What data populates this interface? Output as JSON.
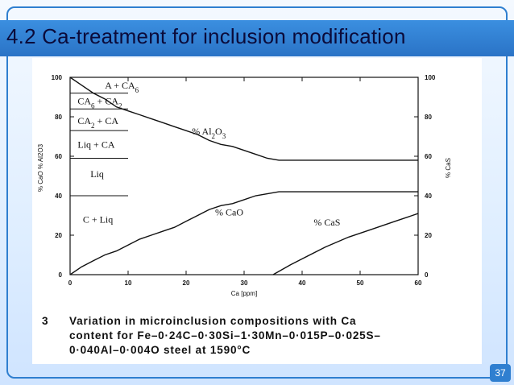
{
  "slide": {
    "title": "4.2  Ca-treatment for inclusion modification",
    "page_number": "37",
    "colors": {
      "title_bar": "#2a73c6",
      "frame": "#2f7fd0",
      "title_text": "#0b0b3a"
    }
  },
  "figure": {
    "caption_number": "3",
    "caption_lines": [
      "Variation  in  microinclusion  compositions  with  Ca",
      "content  for  Fe–0·24C–0·30Si–1·30Mn–0·015P–0·025S–",
      "0·040Al–0·004O steel at 1590°C"
    ]
  },
  "chart_data": {
    "type": "line",
    "xlabel": "Ca [ppm]",
    "ylabel_left": "% CaO     % Al2O3",
    "ylabel_right": "% CaS",
    "xlim": [
      0,
      60
    ],
    "ylim": [
      0,
      100
    ],
    "x_ticks": [
      0,
      10,
      20,
      30,
      40,
      50,
      60
    ],
    "y_ticks": [
      0,
      20,
      40,
      60,
      80,
      100
    ],
    "grid": false,
    "region_labels": [
      "A + CA6",
      "CA6 + CA2",
      "CA2 + CA",
      "Liq + CA",
      "Liq",
      "C + Liq"
    ],
    "phase_boundaries_percent": [
      92,
      84,
      73,
      59,
      40
    ],
    "series": [
      {
        "name": "% Al2O3",
        "x": [
          0,
          2,
          4,
          6,
          8,
          10,
          12,
          14,
          16,
          18,
          20,
          22,
          24,
          26,
          28,
          30,
          32,
          34,
          36,
          40,
          45,
          50,
          55,
          60
        ],
        "y": [
          100,
          96,
          92,
          89,
          85,
          83,
          81,
          79,
          77,
          75,
          73,
          71,
          68,
          66,
          65,
          63,
          61,
          59,
          58,
          58,
          58,
          58,
          58,
          58
        ]
      },
      {
        "name": "% CaO",
        "x": [
          0,
          2,
          4,
          6,
          8,
          10,
          12,
          14,
          16,
          18,
          20,
          22,
          24,
          26,
          28,
          30,
          32,
          34,
          36,
          40,
          45,
          50,
          55,
          60
        ],
        "y": [
          0,
          4,
          7,
          10,
          12,
          15,
          18,
          20,
          22,
          24,
          27,
          30,
          33,
          35,
          36,
          38,
          40,
          41,
          42,
          42,
          42,
          42,
          42,
          42
        ]
      },
      {
        "name": "% CaS",
        "x": [
          35,
          38,
          40,
          44,
          48,
          52,
          56,
          60
        ],
        "y": [
          0,
          5,
          8,
          14,
          19,
          23,
          27,
          31
        ]
      }
    ]
  }
}
